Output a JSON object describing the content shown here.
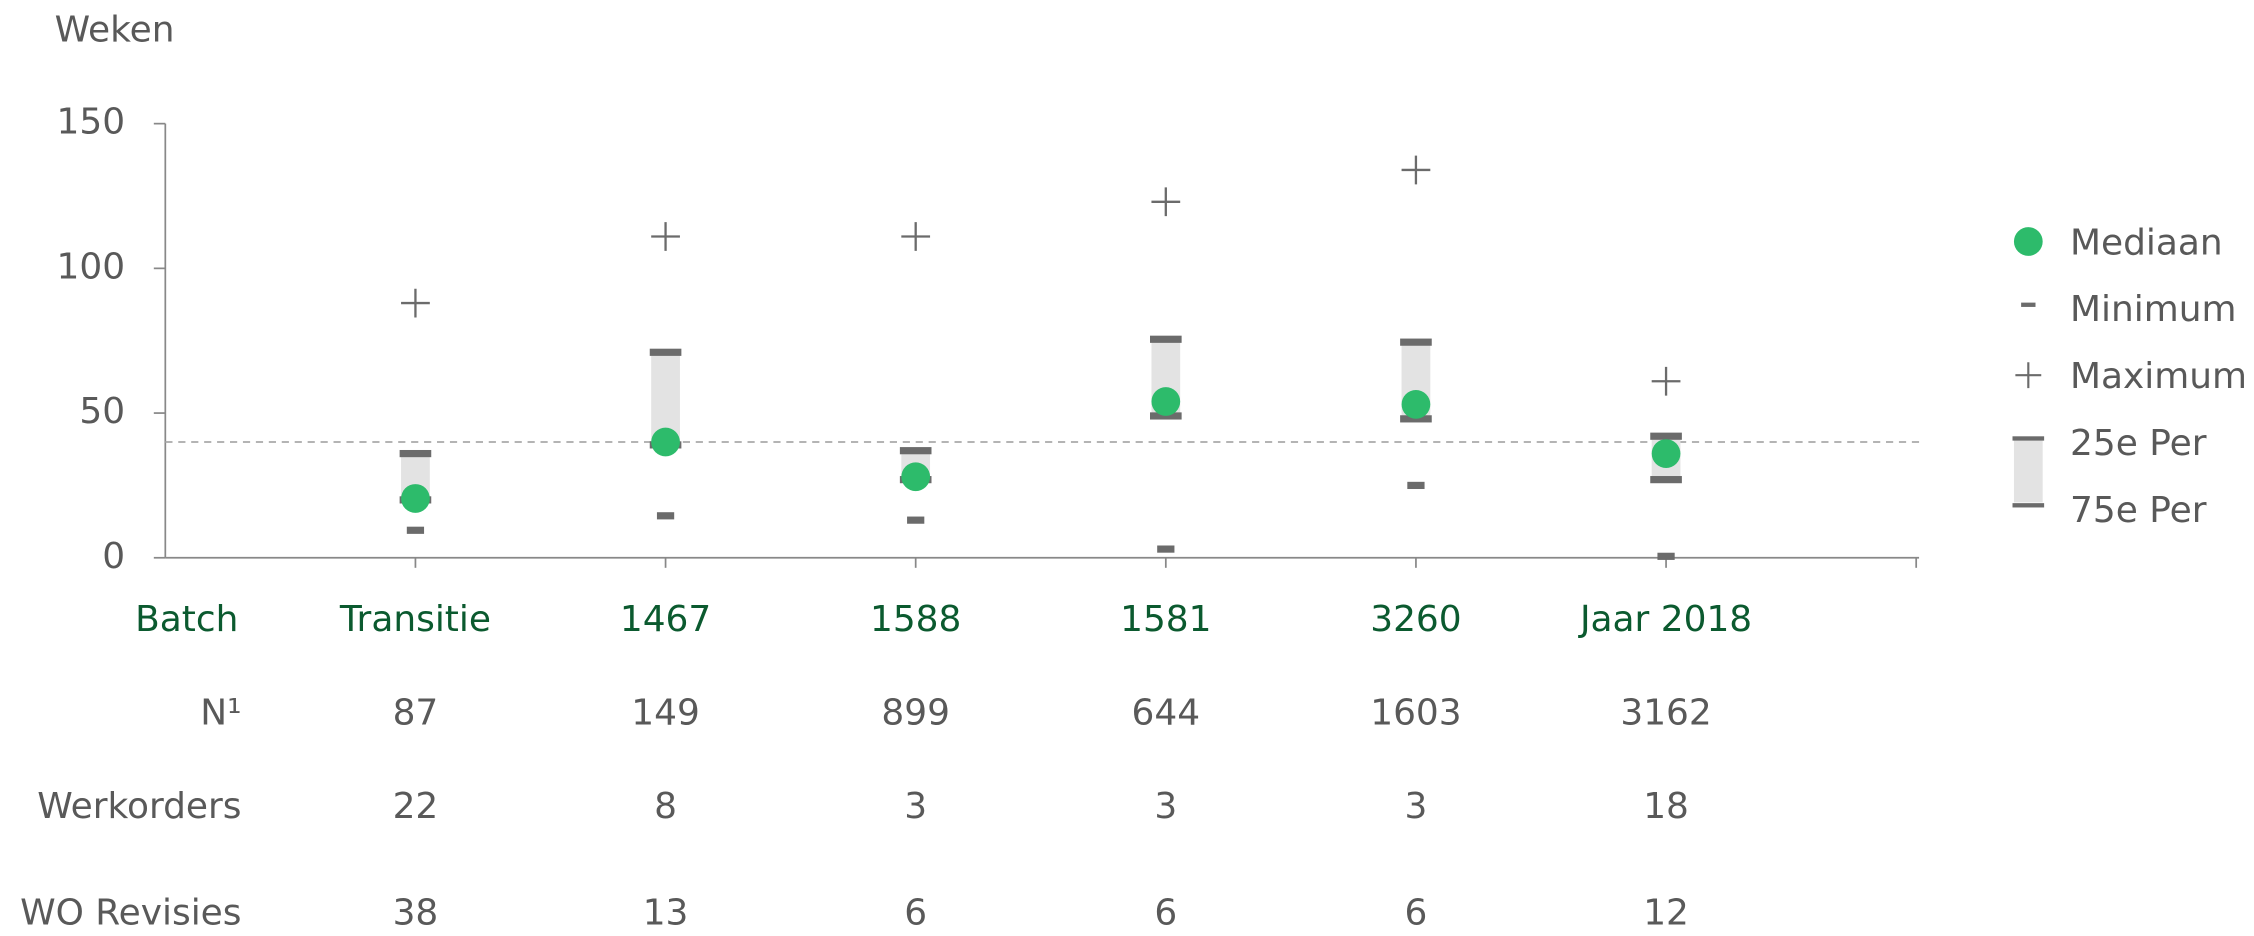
{
  "chart_data": {
    "type": "box",
    "y_label": "Weken",
    "category_header": "Batch",
    "categories": [
      "Transitie",
      "1467",
      "1588",
      "1581",
      "3260",
      "Jaar 2018"
    ],
    "series": [
      {
        "name": "Mediaan",
        "marker": "dot",
        "color": "#2dbb6b",
        "values": [
          20.5,
          40,
          28,
          54,
          53,
          36
        ]
      },
      {
        "name": "Minimum",
        "marker": "dash",
        "color": "#6b6b6b",
        "values": [
          9.5,
          14.5,
          13,
          3,
          25,
          0.5
        ]
      },
      {
        "name": "Maximum",
        "marker": "plus",
        "color": "#6b6b6b",
        "values": [
          88,
          111,
          111,
          123,
          134,
          61
        ]
      },
      {
        "name": "25e Per",
        "marker": "box-low",
        "color": "#6b6b6b",
        "values": [
          20,
          39,
          27,
          49,
          48,
          27
        ]
      },
      {
        "name": "75e Per",
        "marker": "box-high",
        "color": "#6b6b6b",
        "values": [
          36,
          71,
          37,
          75.5,
          74.5,
          42
        ]
      }
    ],
    "box_color": "#e3e3e3",
    "reference_line": 40,
    "ylim": [
      0,
      150
    ],
    "yticks": [
      0,
      50,
      100,
      150
    ]
  },
  "table": {
    "row_labels": [
      "N¹",
      "Werkorders",
      "WO Revisies"
    ],
    "rows": [
      [
        87,
        149,
        899,
        644,
        1603,
        3162
      ],
      [
        22,
        8,
        3,
        3,
        3,
        18
      ],
      [
        38,
        13,
        6,
        6,
        6,
        12
      ]
    ]
  }
}
